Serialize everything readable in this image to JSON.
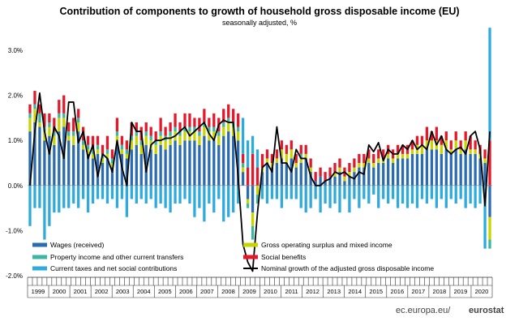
{
  "chart_data": {
    "type": "bar",
    "title": "Contribution of components to growth of household gross disposable income (EU)",
    "subtitle": "seasonally adjusted, %",
    "ylim": [
      -2.0,
      3.0
    ],
    "y_ticks": [
      "3.0%",
      "2.0%",
      "1.0%",
      "0.0%",
      "-1.0%",
      "-2.0%"
    ],
    "years": [
      "1999",
      "2000",
      "2001",
      "2002",
      "2003",
      "2004",
      "2005",
      "2006",
      "2007",
      "2008",
      "2009",
      "2010",
      "2011",
      "2012",
      "2013",
      "2014",
      "2015",
      "2016",
      "2017",
      "2018",
      "2019",
      "2020"
    ],
    "series": [
      {
        "name": "Wages (received)",
        "color": "#2b6cb0",
        "values": [
          1.2,
          1.4,
          1.3,
          1.0,
          1.1,
          0.9,
          1.2,
          1.3,
          1.0,
          0.9,
          1.2,
          0.8,
          0.7,
          0.6,
          0.7,
          0.5,
          0.6,
          0.4,
          0.9,
          0.7,
          0.6,
          0.8,
          0.9,
          0.7,
          0.9,
          0.8,
          0.7,
          0.9,
          0.8,
          0.9,
          1.0,
          0.9,
          1.0,
          1.0,
          1.0,
          0.9,
          1.1,
          1.0,
          1.0,
          0.9,
          1.1,
          1.2,
          1.1,
          1.0,
          0.3,
          -0.3,
          -0.6,
          0.0,
          0.3,
          0.5,
          0.4,
          0.5,
          0.6,
          0.5,
          0.6,
          0.4,
          0.5,
          0.6,
          0.3,
          0.1,
          0.2,
          0.1,
          0.2,
          0.2,
          0.3,
          0.1,
          0.2,
          0.3,
          0.4,
          0.4,
          0.5,
          0.4,
          0.5,
          0.5,
          0.6,
          0.5,
          0.6,
          0.6,
          0.6,
          0.7,
          0.7,
          0.7,
          0.8,
          0.8,
          0.8,
          0.7,
          0.8,
          0.7,
          0.8,
          0.7,
          0.8,
          0.7,
          0.7,
          0.6,
          0.5,
          -0.7
        ]
      },
      {
        "name": "Gross operating surplus and mixed income",
        "color": "#c8d400",
        "values": [
          0.3,
          0.3,
          0.1,
          0.2,
          0.2,
          0.2,
          0.3,
          0.2,
          0.1,
          0.2,
          0.2,
          0.1,
          0.1,
          0.1,
          0.1,
          0.1,
          0.1,
          0.1,
          0.2,
          0.1,
          0.1,
          0.2,
          0.2,
          0.2,
          0.2,
          0.2,
          0.2,
          0.2,
          0.2,
          0.2,
          0.2,
          0.2,
          0.2,
          0.2,
          0.2,
          0.2,
          0.2,
          0.2,
          0.2,
          0.2,
          0.2,
          0.2,
          0.2,
          0.2,
          0.1,
          -0.1,
          -0.3,
          -0.2,
          0.1,
          0.1,
          0.1,
          0.1,
          0.2,
          0.2,
          0.2,
          0.1,
          0.1,
          0.1,
          0.1,
          0.0,
          0.0,
          0.0,
          0.0,
          0.1,
          0.1,
          0.1,
          0.1,
          0.1,
          0.1,
          0.1,
          0.1,
          0.1,
          0.1,
          0.1,
          0.1,
          0.1,
          0.1,
          0.1,
          0.1,
          0.1,
          0.2,
          0.2,
          0.2,
          0.2,
          0.2,
          0.2,
          0.2,
          0.1,
          0.2,
          0.1,
          0.2,
          0.1,
          0.1,
          0.1,
          0.1,
          -0.5
        ]
      },
      {
        "name": "Property income and other current transfers",
        "color": "#3cb6a0",
        "values": [
          0.1,
          0.1,
          0.2,
          0.1,
          0.1,
          0.1,
          0.1,
          0.1,
          0.1,
          0.1,
          0.1,
          0.1,
          0.1,
          0.1,
          0.1,
          0.1,
          0.1,
          0.1,
          0.1,
          0.1,
          0.1,
          0.1,
          0.1,
          0.1,
          0.1,
          0.1,
          0.1,
          0.1,
          0.1,
          0.1,
          0.1,
          0.1,
          0.1,
          0.1,
          0.1,
          0.1,
          0.1,
          0.1,
          0.1,
          0.1,
          0.1,
          0.1,
          0.1,
          0.1,
          0.1,
          -0.1,
          -0.3,
          -0.2,
          0.0,
          0.0,
          0.0,
          0.0,
          0.0,
          0.0,
          0.0,
          0.0,
          0.1,
          0.0,
          0.0,
          0.0,
          0.0,
          0.0,
          0.0,
          0.0,
          0.0,
          0.0,
          0.0,
          0.0,
          0.0,
          0.0,
          0.0,
          0.0,
          0.0,
          0.0,
          0.0,
          0.0,
          0.0,
          0.0,
          0.0,
          0.0,
          0.0,
          0.0,
          0.0,
          0.0,
          0.0,
          0.0,
          0.0,
          0.0,
          0.0,
          0.0,
          0.0,
          0.0,
          0.0,
          0.0,
          0.0,
          -0.2
        ]
      },
      {
        "name": "Social benefits",
        "color": "#e3192b",
        "values": [
          0.2,
          0.3,
          0.2,
          0.3,
          0.2,
          0.3,
          0.3,
          0.4,
          0.2,
          0.3,
          0.2,
          0.3,
          0.2,
          0.3,
          0.2,
          0.2,
          0.3,
          0.2,
          0.3,
          0.2,
          0.2,
          0.3,
          0.2,
          0.3,
          0.2,
          0.2,
          0.2,
          0.3,
          0.2,
          0.2,
          0.3,
          0.2,
          0.3,
          0.3,
          0.2,
          0.3,
          0.3,
          0.2,
          0.3,
          0.3,
          0.3,
          0.3,
          0.3,
          0.3,
          0.2,
          0.4,
          0.7,
          0.4,
          0.3,
          0.2,
          0.2,
          0.2,
          0.2,
          0.2,
          0.2,
          0.2,
          0.2,
          0.2,
          0.2,
          0.2,
          0.2,
          0.2,
          0.2,
          0.2,
          0.2,
          0.2,
          0.2,
          0.2,
          0.2,
          0.2,
          0.2,
          0.2,
          0.2,
          0.2,
          0.2,
          0.2,
          0.2,
          0.2,
          0.2,
          0.2,
          0.2,
          0.2,
          0.3,
          0.2,
          0.3,
          0.2,
          0.2,
          0.2,
          0.2,
          0.2,
          0.2,
          0.3,
          0.2,
          0.2,
          0.2,
          1.0
        ]
      },
      {
        "name": "Current taxes and net social contributions",
        "color": "#2eaadc",
        "values": [
          -0.9,
          -0.5,
          -0.5,
          -1.2,
          -0.9,
          -0.6,
          -0.6,
          -0.5,
          -0.5,
          -0.4,
          -0.5,
          -0.3,
          -0.6,
          -0.4,
          -0.3,
          -0.3,
          -0.4,
          -0.3,
          -0.5,
          -0.3,
          -0.7,
          -0.3,
          -0.4,
          -0.3,
          -0.4,
          -0.3,
          -0.5,
          -0.4,
          -0.5,
          -0.6,
          -0.4,
          -0.4,
          -0.3,
          -0.4,
          -0.7,
          -0.5,
          -0.8,
          -0.4,
          -0.6,
          -0.3,
          -0.8,
          -0.7,
          -0.6,
          -0.4,
          0.8,
          0.6,
          0.4,
          0.4,
          -0.3,
          -0.4,
          -0.3,
          -0.3,
          -0.5,
          -0.3,
          -0.3,
          -0.3,
          -0.5,
          -0.6,
          -0.5,
          -0.3,
          -0.6,
          -0.4,
          -0.5,
          -0.4,
          -0.6,
          -0.3,
          -0.6,
          -0.3,
          -0.5,
          -0.3,
          -0.4,
          -0.2,
          -0.5,
          -0.3,
          -0.4,
          -0.3,
          -0.5,
          -0.4,
          -0.5,
          -0.4,
          -0.5,
          -0.3,
          -0.4,
          -0.3,
          -0.5,
          -0.3,
          -0.5,
          -0.3,
          -0.4,
          -0.3,
          -0.5,
          -0.4,
          -0.5,
          -0.4,
          -1.4,
          2.5
        ]
      },
      {
        "name": "Nominal growth of the adjusted gross disposable income",
        "color": "#000000",
        "kind": "line",
        "values": [
          0.0,
          1.2,
          2.05,
          1.2,
          0.7,
          1.3,
          1.1,
          0.6,
          1.85,
          1.85,
          0.95,
          1.2,
          0.6,
          0.9,
          0.2,
          0.7,
          0.6,
          0.3,
          1.0,
          0.4,
          0.0,
          1.4,
          1.2,
          1.2,
          0.3,
          0.9,
          1.0,
          1.0,
          1.05,
          1.05,
          1.1,
          1.2,
          1.3,
          1.1,
          1.2,
          1.3,
          1.4,
          1.15,
          1.0,
          1.35,
          1.45,
          1.4,
          1.4,
          0.2,
          -1.3,
          -1.7,
          -1.9,
          -0.6,
          0.4,
          0.5,
          0.3,
          1.3,
          0.5,
          0.5,
          0.3,
          0.8,
          0.6,
          0.6,
          0.2,
          0.0,
          0.0,
          0.1,
          0.15,
          0.3,
          0.25,
          0.3,
          0.2,
          0.15,
          0.3,
          0.25,
          0.9,
          0.75,
          0.95,
          0.55,
          0.8,
          0.7,
          0.7,
          0.9,
          0.8,
          1.0,
          0.8,
          0.9,
          0.8,
          1.2,
          0.9,
          1.1,
          0.8,
          0.7,
          0.8,
          0.85,
          0.7,
          1.1,
          1.2,
          0.8,
          -0.45,
          1.2
        ]
      }
    ],
    "legend": [
      {
        "label": "Wages (received)",
        "color": "#2b6cb0",
        "kind": "bar"
      },
      {
        "label": "Gross operating surplus and mixed income",
        "color": "#c8d400",
        "kind": "bar"
      },
      {
        "label": "Property income and other current transfers",
        "color": "#3cb6a0",
        "kind": "bar"
      },
      {
        "label": "Social benefits",
        "color": "#e3192b",
        "kind": "bar"
      },
      {
        "label": "Current taxes and net social contributions",
        "color": "#2eaadc",
        "kind": "bar"
      },
      {
        "label": "Nominal growth of the adjusted gross disposable income",
        "color": "#000000",
        "kind": "line"
      }
    ],
    "grid": false
  },
  "footer": {
    "brand_prefix": "ec.europa.eu/",
    "brand_suffix": "eurostat"
  }
}
